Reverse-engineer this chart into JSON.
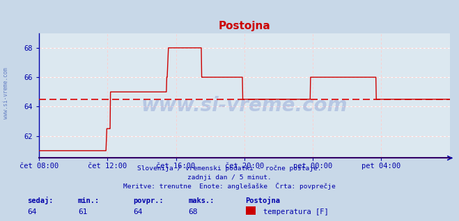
{
  "title": "Postojna",
  "bg_color": "#c8d8e8",
  "plot_bg_color": "#dce8f0",
  "grid_color_h": "#ffffff",
  "grid_color_dash": "#ffcccc",
  "line_color": "#cc0000",
  "avg_line_color": "#dd0000",
  "axis_color": "#0000aa",
  "text_color": "#0000aa",
  "watermark_color": "#2244aa",
  "ylim": [
    60.5,
    69.0
  ],
  "yticks": [
    62,
    64,
    66,
    68
  ],
  "avg_value": 64.5,
  "subtitle1": "Slovenija / vremenski podatki - ročne postaje.",
  "subtitle2": "zadnji dan / 5 minut.",
  "subtitle3": "Meritve: trenutne  Enote: anglešaške  Črta: povprečje",
  "footer_labels": [
    "sedaj:",
    "min.:",
    "povpr.:",
    "maks.:"
  ],
  "footer_values": [
    "64",
    "61",
    "64",
    "68"
  ],
  "footer_station": "Postojna",
  "footer_series": "temperatura [F]",
  "x_labels": [
    "čet 08:00",
    "čet 12:00",
    "čet 16:00",
    "čet 20:00",
    "pet 00:00",
    "pet 04:00"
  ],
  "x_ticks_norm": [
    0.0,
    0.1667,
    0.3333,
    0.5,
    0.6667,
    0.8333
  ],
  "data_x": [
    0.0,
    0.05,
    0.1,
    0.15,
    0.16,
    0.162,
    0.163,
    0.165,
    0.17,
    0.172,
    0.173,
    0.174,
    0.175,
    0.195,
    0.22,
    0.24,
    0.26,
    0.28,
    0.3,
    0.31,
    0.311,
    0.312,
    0.315,
    0.34,
    0.36,
    0.38,
    0.395,
    0.396,
    0.397,
    0.4,
    0.43,
    0.46,
    0.49,
    0.495,
    0.496,
    0.497,
    0.5,
    0.53,
    0.56,
    0.59,
    0.61,
    0.63,
    0.65,
    0.66,
    0.661,
    0.662,
    0.665,
    0.68,
    0.7,
    0.72,
    0.74,
    0.76,
    0.78,
    0.8,
    0.82,
    0.821,
    0.822,
    0.825,
    0.84,
    0.86,
    0.88,
    0.9,
    0.92,
    0.94,
    0.941,
    0.942,
    0.945,
    0.97,
    1.0
  ],
  "data_y": [
    61.0,
    61.0,
    61.0,
    61.0,
    61.0,
    61.0,
    61.0,
    62.5,
    62.5,
    62.5,
    62.5,
    65.0,
    65.0,
    65.0,
    65.0,
    65.0,
    65.0,
    65.0,
    65.0,
    65.0,
    66.0,
    66.0,
    68.0,
    68.0,
    68.0,
    68.0,
    68.0,
    66.0,
    66.0,
    66.0,
    66.0,
    66.0,
    66.0,
    66.0,
    64.5,
    64.5,
    64.5,
    64.5,
    64.5,
    64.5,
    64.5,
    64.5,
    64.5,
    64.5,
    66.0,
    66.0,
    66.0,
    66.0,
    66.0,
    66.0,
    66.0,
    66.0,
    66.0,
    66.0,
    66.0,
    64.5,
    64.5,
    64.5,
    64.5,
    64.5,
    64.5,
    64.5,
    64.5,
    64.5,
    64.5,
    64.5,
    64.5,
    64.5,
    64.5
  ]
}
